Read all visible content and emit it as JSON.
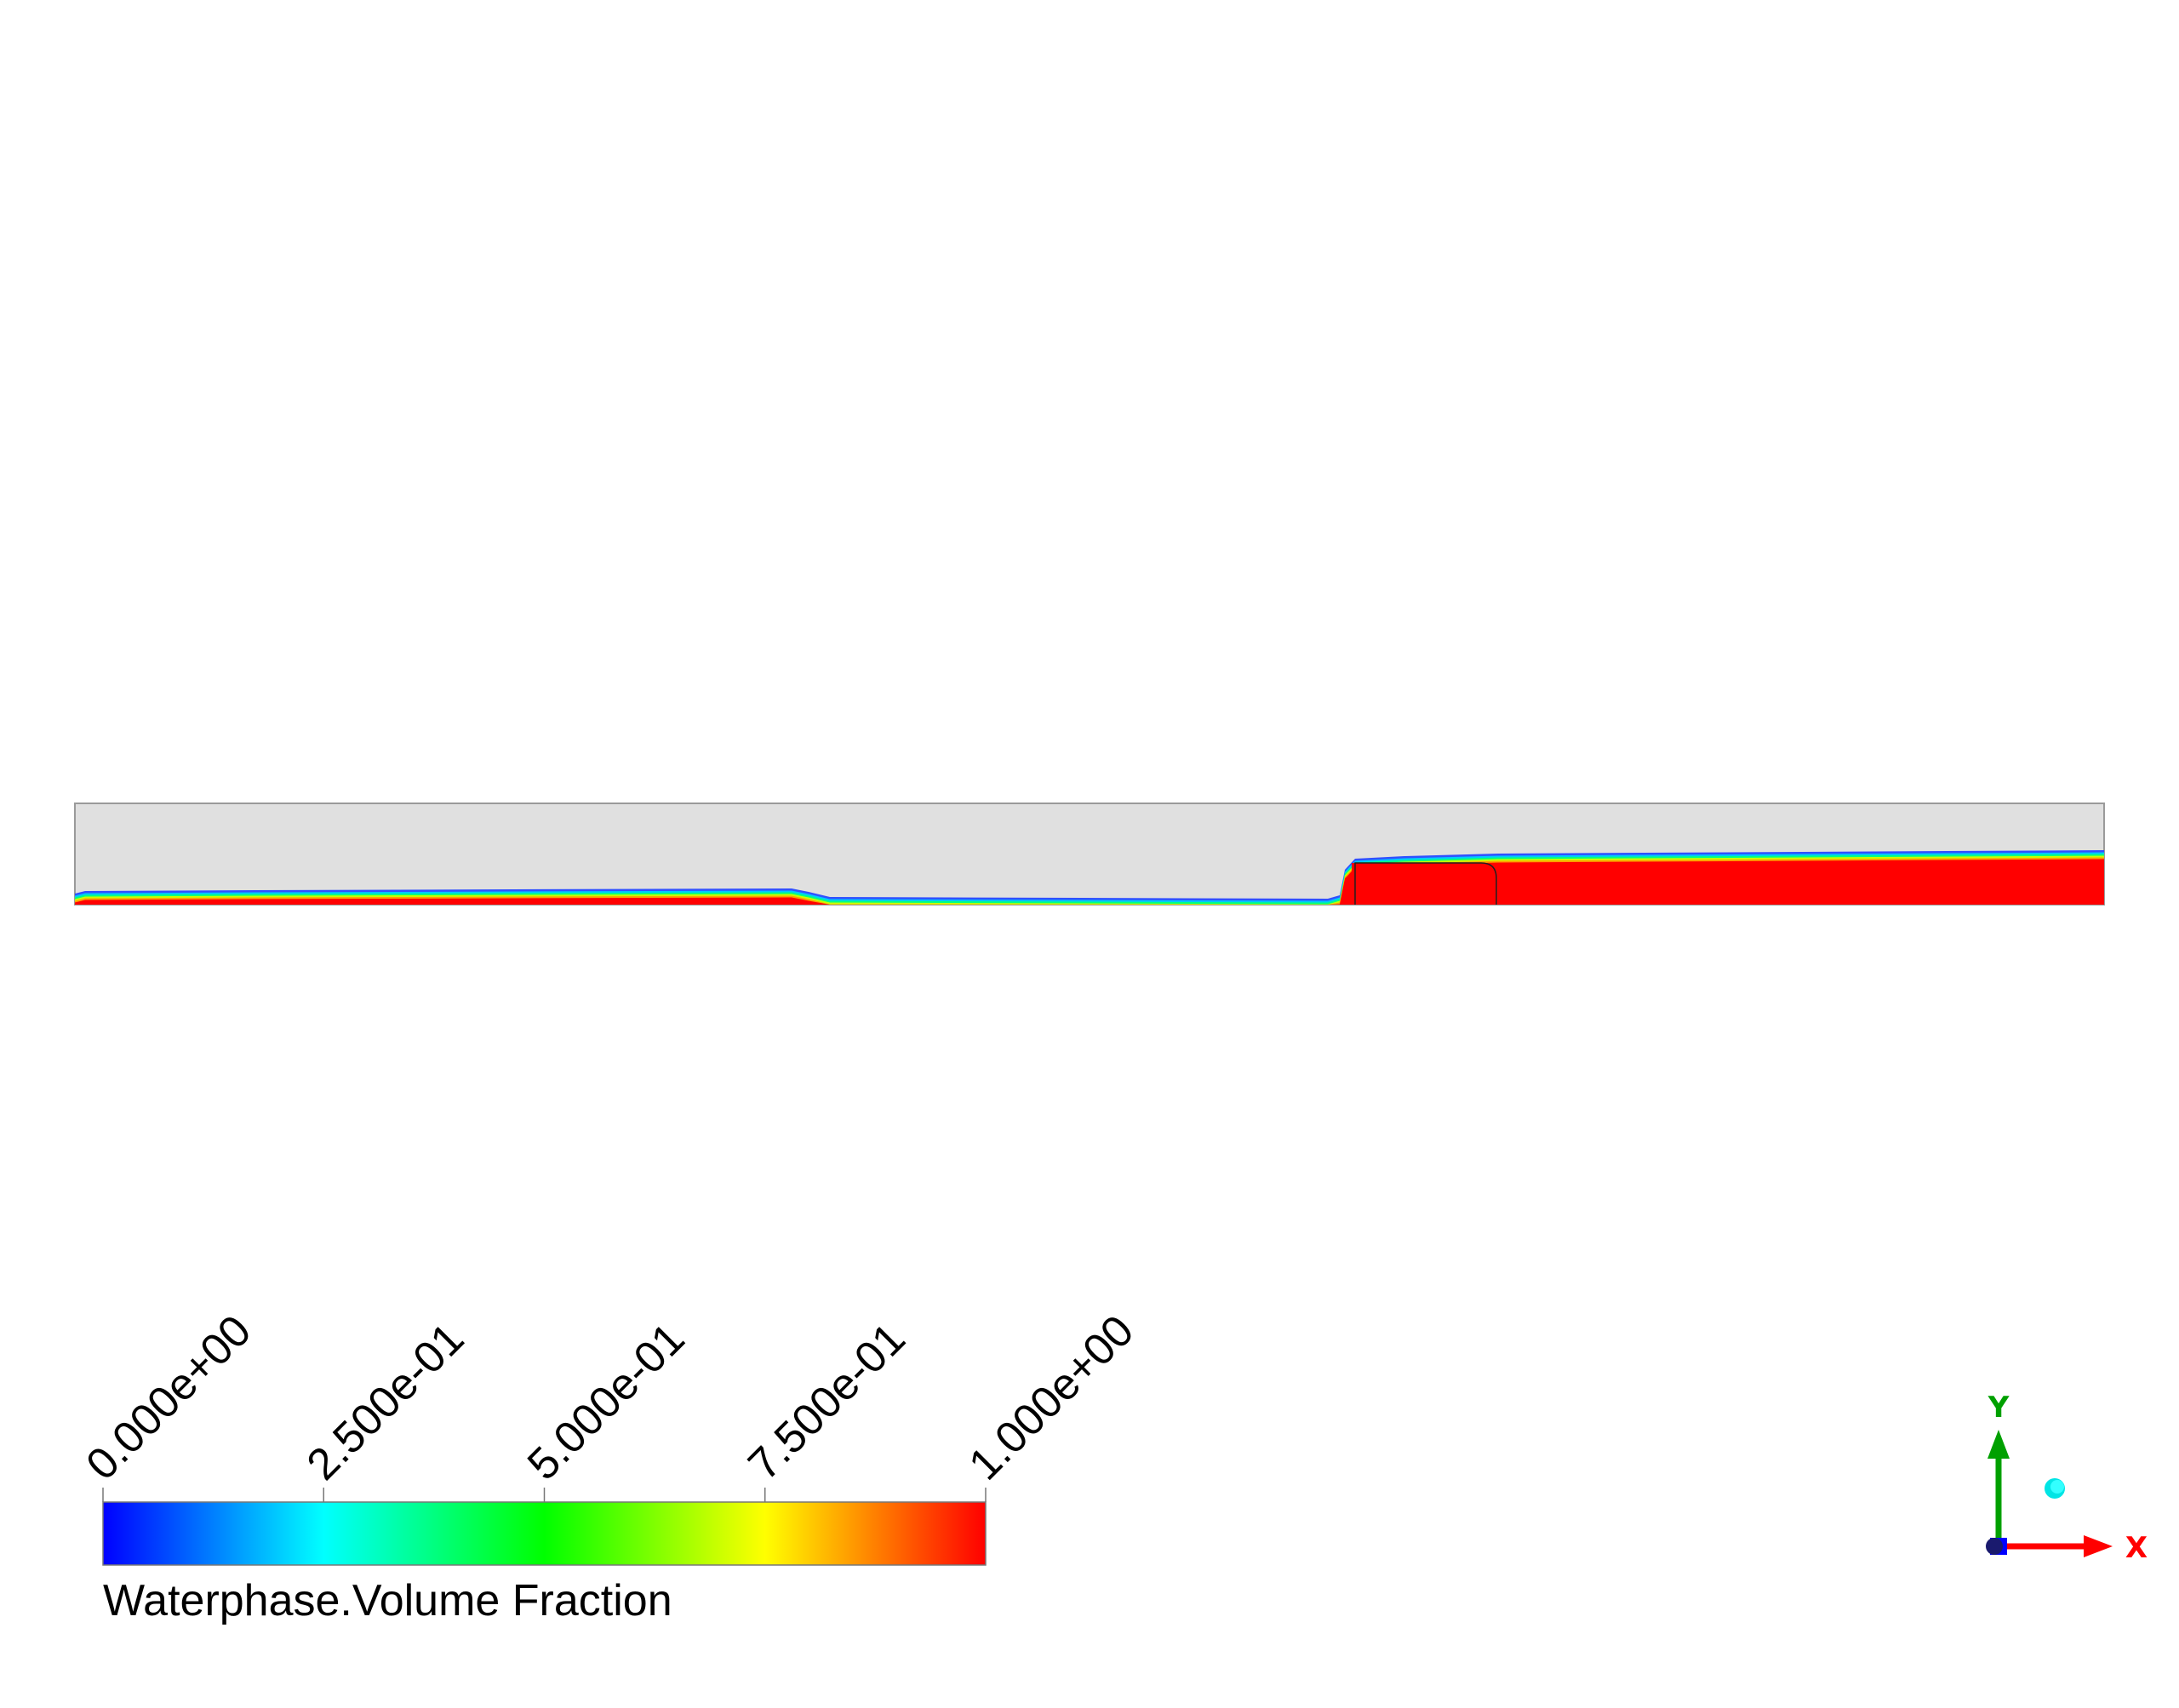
{
  "contour": {
    "variable": "Waterphase.Volume Fraction",
    "range": [
      0,
      1
    ],
    "background_color": "#e0e0e0",
    "colormap": [
      "#0000ff",
      "#00ffff",
      "#00ff00",
      "#ffff00",
      "#ff0000"
    ]
  },
  "legend": {
    "title": "Waterphase.Volume Fraction",
    "ticks": [
      "0.000e+00",
      "2.500e-01",
      "5.000e-01",
      "7.500e-01",
      "1.000e+00"
    ]
  },
  "triad": {
    "x_label": "X",
    "y_label": "Y",
    "x_color": "#ff0000",
    "y_color": "#00a000",
    "z_color": "#0000ff"
  }
}
